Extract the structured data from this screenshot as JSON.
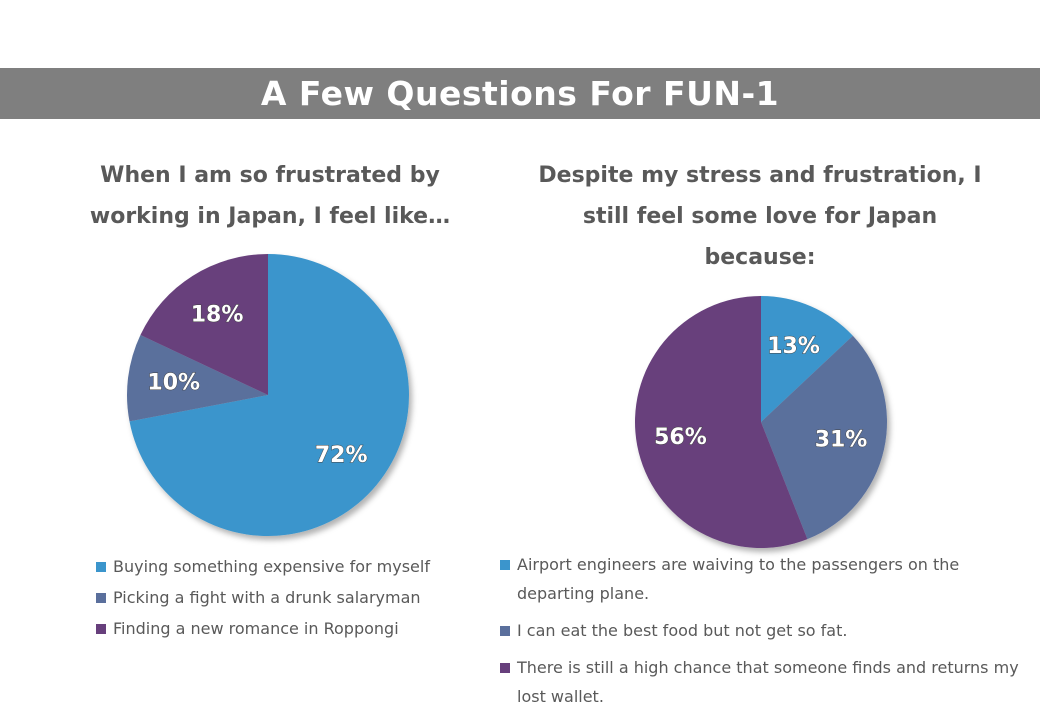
{
  "banner": {
    "title": "A Few Questions For FUN-1"
  },
  "chart_data": [
    {
      "type": "pie",
      "title": "When I am so frustrated by working in Japan, I feel like…",
      "legend_position": "bottom",
      "labels": [
        "Buying something expensive for myself",
        "Picking a fight with a drunk salaryman",
        "Finding a new romance in Roppongi"
      ],
      "values": [
        72,
        10,
        18
      ],
      "data_labels": [
        "72%",
        "10%",
        "18%"
      ],
      "colors": [
        "#3b95cc",
        "#5a6f9c",
        "#673f7c"
      ]
    },
    {
      "type": "pie",
      "title": "Despite my stress and frustration, I still feel some love for Japan because:",
      "legend_position": "bottom",
      "labels": [
        "Airport engineers are waiving to the passengers on the departing plane.",
        "I can eat the best food but not get so fat.",
        "There is still a high chance that someone finds and returns my lost wallet."
      ],
      "values": [
        13,
        31,
        56
      ],
      "data_labels": [
        "13%",
        "31%",
        "56%"
      ],
      "colors": [
        "#3b95cc",
        "#5a6f9c",
        "#673f7c"
      ]
    }
  ]
}
